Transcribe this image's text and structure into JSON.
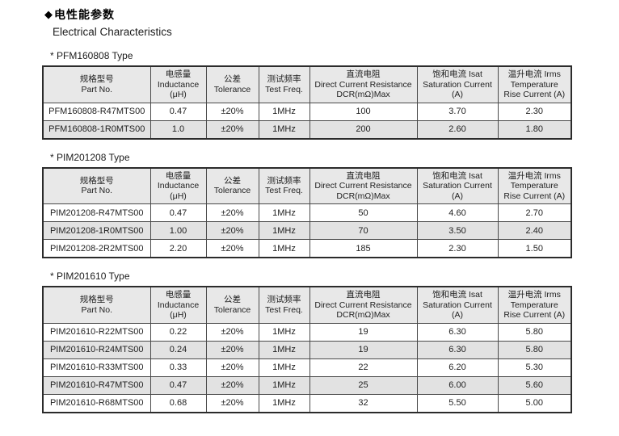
{
  "page": {
    "bullet": "◆",
    "heading_zh": "电性能参数",
    "heading_en": "Electrical Characteristics"
  },
  "colors": {
    "header_bg": "#e8e8e8",
    "alt_row_bg": "#e2e2e2",
    "border": "#2b2b2b",
    "text": "#1f1f1f"
  },
  "columns": [
    {
      "name": "part-no",
      "lines": [
        "规格型号",
        "Part No."
      ]
    },
    {
      "name": "inductance",
      "lines": [
        "电感量",
        "Inductance",
        "(μH)"
      ]
    },
    {
      "name": "tolerance",
      "lines": [
        "公差",
        "Tolerance"
      ]
    },
    {
      "name": "test-freq",
      "lines": [
        "测试频率",
        "Test Freq."
      ]
    },
    {
      "name": "dcr",
      "lines": [
        "直流电阻",
        "Direct Current Resistance",
        "DCR(mΩ)Max"
      ]
    },
    {
      "name": "isat",
      "lines": [
        "饱和电流  Isat",
        "Saturation Current",
        "(A)"
      ]
    },
    {
      "name": "irms",
      "lines": [
        "温升电流  Irms",
        "Temperature",
        "Rise Current (A)"
      ]
    }
  ],
  "sections": [
    {
      "label": "*  PFM160808 Type",
      "rows": [
        [
          "PFM160808-R47MTS00",
          "0.47",
          "±20%",
          "1MHz",
          "100",
          "3.70",
          "2.30"
        ],
        [
          "PFM160808-1R0MTS00",
          "1.0",
          "±20%",
          "1MHz",
          "200",
          "2.60",
          "1.80"
        ]
      ]
    },
    {
      "label": "*  PIM201208 Type",
      "rows": [
        [
          "PIM201208-R47MTS00",
          "0.47",
          "±20%",
          "1MHz",
          "50",
          "4.60",
          "2.70"
        ],
        [
          "PIM201208-1R0MTS00",
          "1.00",
          "±20%",
          "1MHz",
          "70",
          "3.50",
          "2.40"
        ],
        [
          "PIM201208-2R2MTS00",
          "2.20",
          "±20%",
          "1MHz",
          "185",
          "2.30",
          "1.50"
        ]
      ]
    },
    {
      "label": "*  PIM201610 Type",
      "rows": [
        [
          "PIM201610-R22MTS00",
          "0.22",
          "±20%",
          "1MHz",
          "19",
          "6.30",
          "5.80"
        ],
        [
          "PIM201610-R24MTS00",
          "0.24",
          "±20%",
          "1MHz",
          "19",
          "6.30",
          "5.80"
        ],
        [
          "PIM201610-R33MTS00",
          "0.33",
          "±20%",
          "1MHz",
          "22",
          "6.20",
          "5.30"
        ],
        [
          "PIM201610-R47MTS00",
          "0.47",
          "±20%",
          "1MHz",
          "25",
          "6.00",
          "5.60"
        ],
        [
          "PIM201610-R68MTS00",
          "0.68",
          "±20%",
          "1MHz",
          "32",
          "5.50",
          "5.00"
        ]
      ]
    }
  ]
}
